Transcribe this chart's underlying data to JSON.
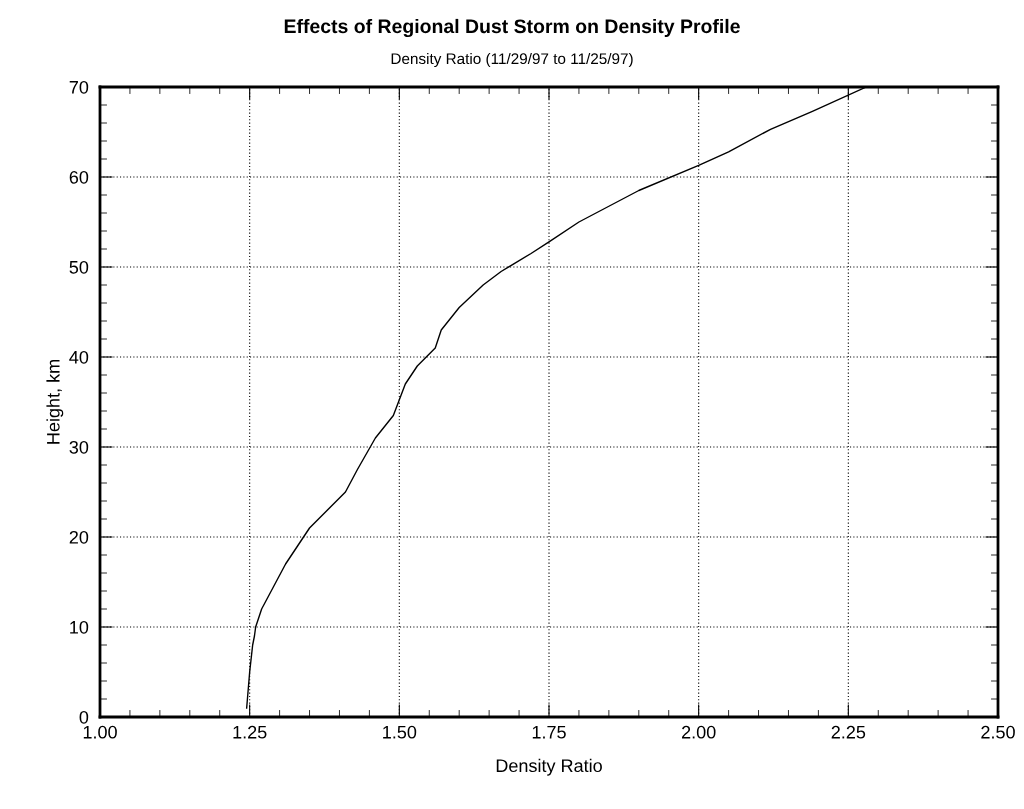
{
  "chart_data": {
    "type": "line",
    "title": "Effects of Regional Dust Storm on Density Profile",
    "subtitle": "Density Ratio (11/29/97 to 11/25/97)",
    "xlabel": "Density Ratio",
    "ylabel": "Height, km",
    "series": [
      {
        "color": "#000000",
        "x": [
          1.245,
          1.25,
          1.255,
          1.258,
          1.26,
          1.27,
          1.29,
          1.31,
          1.33,
          1.35,
          1.38,
          1.41,
          1.43,
          1.46,
          1.49,
          1.51,
          1.53,
          1.56,
          1.57,
          1.6,
          1.64,
          1.67,
          1.72,
          1.75,
          1.8,
          1.9,
          2.0,
          2.05,
          2.12,
          2.19,
          2.28
        ],
        "values": [
          1,
          5,
          8,
          9,
          10,
          12,
          14.5,
          17,
          19,
          21,
          23,
          25,
          27.5,
          31,
          33.5,
          37,
          39,
          41,
          43,
          45.5,
          48,
          49.5,
          51.5,
          52.8,
          55,
          58.5,
          61.3,
          62.8,
          65.3,
          67.3,
          70
        ]
      }
    ],
    "xlim": [
      1.0,
      2.5
    ],
    "xticks": [
      {
        "value": 1.0,
        "label": "1.00"
      },
      {
        "value": 1.25,
        "label": "1.25"
      },
      {
        "value": 1.5,
        "label": "1.50"
      },
      {
        "value": 1.75,
        "label": "1.75"
      },
      {
        "value": 2.0,
        "label": "2.00"
      },
      {
        "value": 2.25,
        "label": "2.25"
      },
      {
        "value": 2.5,
        "label": "2.50"
      }
    ],
    "ylim": [
      0,
      70
    ],
    "yticks": [
      0,
      10,
      20,
      30,
      40,
      50,
      60,
      70
    ],
    "grid": true,
    "line_style": "solid",
    "marker": "none",
    "legend": false
  }
}
